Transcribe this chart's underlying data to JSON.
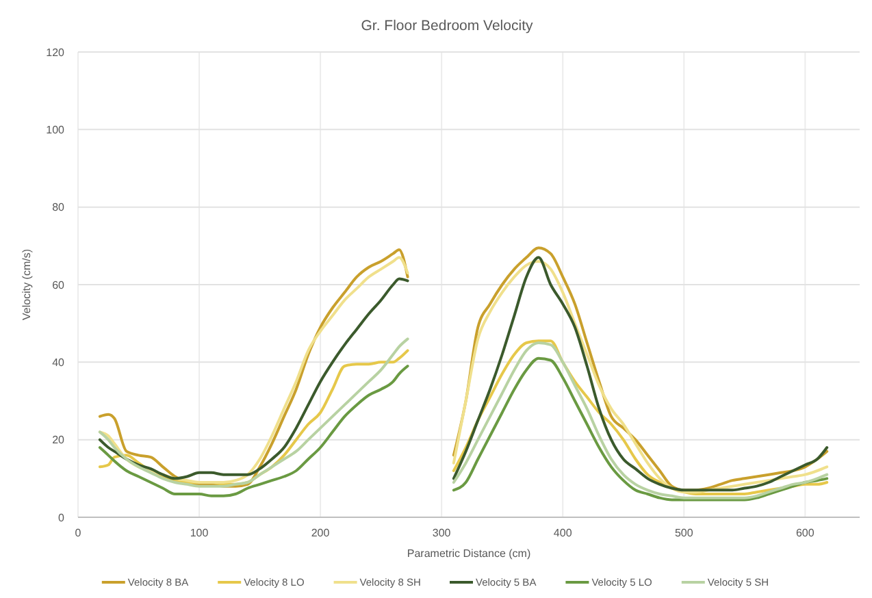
{
  "chart_data": {
    "type": "line",
    "title": "Gr. Floor Bedroom Velocity",
    "xlabel": "Parametric Distance (cm)",
    "ylabel": "Velocity (cm/s)",
    "x": [
      18,
      25,
      30,
      40,
      50,
      60,
      70,
      80,
      90,
      100,
      110,
      120,
      130,
      140,
      150,
      160,
      170,
      180,
      190,
      200,
      210,
      220,
      230,
      240,
      250,
      260,
      265,
      272,
      null,
      310,
      320,
      330,
      340,
      350,
      360,
      370,
      380,
      390,
      400,
      410,
      420,
      430,
      440,
      450,
      460,
      470,
      480,
      490,
      500,
      510,
      520,
      530,
      540,
      550,
      560,
      570,
      580,
      590,
      600,
      610,
      618
    ],
    "series": [
      {
        "name": "Velocity 8 BA",
        "color": "#c9a02c",
        "values": [
          26,
          26.5,
          25.5,
          17,
          16,
          15.5,
          13,
          10.5,
          9,
          8.5,
          8.5,
          8,
          8,
          8.5,
          13,
          19,
          26,
          33,
          42,
          49,
          54,
          58,
          62,
          64.5,
          66,
          68,
          69,
          62,
          null,
          16,
          30,
          49,
          55,
          60,
          64,
          67,
          69.5,
          68,
          62,
          55,
          45,
          35,
          26,
          23,
          20,
          16,
          12,
          8,
          7,
          7,
          7.5,
          8.5,
          9.5,
          10,
          10.5,
          11,
          11.5,
          12,
          13,
          15,
          17
        ]
      },
      {
        "name": "Velocity 8 LO",
        "color": "#e6c84a",
        "values": [
          13,
          13.5,
          15.5,
          16,
          14,
          12,
          10.5,
          9.5,
          9,
          9,
          9,
          8.5,
          8.5,
          9,
          11,
          13,
          16,
          20,
          24,
          27,
          33,
          39,
          39.5,
          39.5,
          40,
          40,
          41,
          43,
          null,
          12,
          18,
          25,
          31,
          37,
          42,
          45,
          45.5,
          45.5,
          40,
          35,
          31,
          27,
          24,
          20,
          15,
          11,
          9,
          7.5,
          6.5,
          6,
          6,
          6,
          6,
          6,
          6.5,
          7,
          7.5,
          8,
          8.5,
          8.5,
          9
        ]
      },
      {
        "name": "Velocity 8 SH",
        "color": "#f0e08c",
        "values": [
          22,
          21,
          19,
          15,
          13,
          12,
          11,
          10,
          9.5,
          9,
          9,
          9,
          9.5,
          11,
          15,
          21,
          28,
          35,
          43,
          48,
          52,
          56,
          59,
          62,
          64,
          66,
          67,
          63,
          null,
          14,
          30,
          46,
          53,
          58,
          62,
          65,
          66,
          64,
          58,
          50,
          42,
          34,
          28,
          24,
          19,
          14,
          10,
          7.5,
          6.5,
          6.5,
          7,
          7.5,
          8,
          8.5,
          9,
          9.5,
          10,
          10.5,
          11,
          12,
          13
        ]
      },
      {
        "name": "Velocity 5 BA",
        "color": "#3b5a2c",
        "values": [
          20,
          18,
          17,
          15,
          13.5,
          12.5,
          11,
          10,
          10.5,
          11.5,
          11.5,
          11,
          11,
          11,
          12.5,
          15,
          18,
          23,
          29,
          35,
          40,
          44.5,
          48.5,
          52.5,
          56,
          60,
          61.5,
          61,
          null,
          10,
          17,
          25,
          33,
          42,
          52,
          62,
          67,
          60,
          55,
          49,
          39,
          28,
          20,
          15,
          12.5,
          10,
          8.5,
          7.5,
          7,
          7,
          7,
          7,
          7,
          7.5,
          8,
          9,
          10.5,
          12,
          13.5,
          15,
          18
        ]
      },
      {
        "name": "Velocity 5 LO",
        "color": "#6a9a42",
        "values": [
          18,
          16,
          14.5,
          12,
          10.5,
          9,
          7.5,
          6,
          6,
          6,
          5.5,
          5.5,
          6,
          7.5,
          8.5,
          9.5,
          10.5,
          12,
          15,
          18,
          22,
          26,
          29,
          31.5,
          33,
          35,
          37,
          39,
          null,
          7,
          9,
          15,
          21,
          27,
          33,
          38,
          41,
          40.5,
          36,
          30,
          24,
          18,
          13,
          9.5,
          7,
          6,
          5,
          4.5,
          4.5,
          4.5,
          4.5,
          4.5,
          4.5,
          4.5,
          5,
          6,
          7,
          8,
          9,
          9.5,
          10
        ]
      },
      {
        "name": "Velocity 5 SH",
        "color": "#b8d2a2",
        "values": [
          22,
          20,
          18,
          15,
          13,
          11.5,
          10,
          9,
          8.5,
          8,
          8,
          8,
          8.5,
          9,
          11,
          13,
          15,
          17,
          20,
          23,
          26,
          29,
          32,
          35,
          38,
          42,
          44,
          46,
          null,
          9,
          14,
          20,
          26,
          32,
          38,
          43,
          45,
          44.5,
          40,
          34,
          28,
          21,
          15,
          11,
          8.5,
          7,
          6,
          5.5,
          5,
          5,
          5,
          5,
          5,
          5,
          5.5,
          6.5,
          7.5,
          8.5,
          9,
          10,
          11
        ]
      }
    ],
    "xlim": [
      0,
      645
    ],
    "xticks": [
      0,
      100,
      200,
      300,
      400,
      500,
      600
    ],
    "ylim": [
      0,
      120
    ],
    "yticks": [
      0,
      20,
      40,
      60,
      80,
      100,
      120
    ],
    "grid": true,
    "legend": "bottom",
    "marker": "none",
    "line_style": "solid"
  }
}
